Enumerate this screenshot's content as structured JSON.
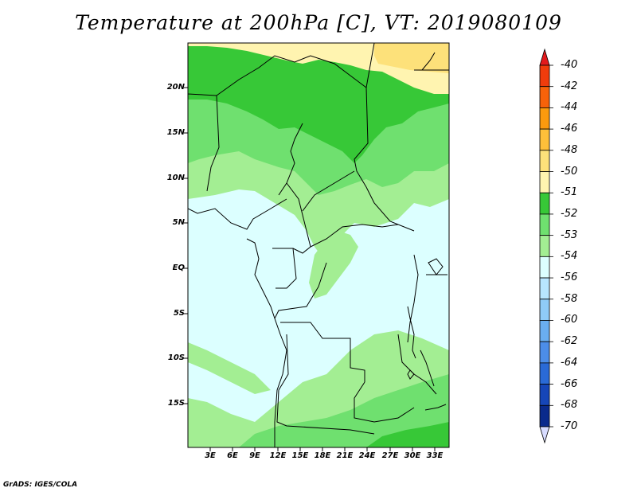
{
  "title": "Temperature at 200hPa [C], VT: 2019080109",
  "credit": "GrADS: IGES/COLA",
  "lat_labels": [
    "20N",
    "15N",
    "10N",
    "5N",
    "EQ",
    "5S",
    "10S",
    "15S"
  ],
  "lon_labels": [
    "3E",
    "6E",
    "9E",
    "12E",
    "15E",
    "18E",
    "21E",
    "24E",
    "27E",
    "30E",
    "33E"
  ],
  "colorbar": {
    "labels": [
      "-40",
      "-42",
      "-44",
      "-46",
      "-48",
      "-50",
      "-51",
      "-52",
      "-53",
      "-54",
      "-56",
      "-58",
      "-60",
      "-62",
      "-64",
      "-66",
      "-68",
      "-70"
    ],
    "colors": [
      "#e31a1c",
      "#f03c0c",
      "#f7620a",
      "#fb9a0e",
      "#fdbf3a",
      "#fde17a",
      "#fff4b0",
      "#37c837",
      "#6fe06f",
      "#a3ee93",
      "#dcffff",
      "#b8e6ff",
      "#8fcbf7",
      "#6aaef0",
      "#4c8de8",
      "#2a6ad6",
      "#1646b8",
      "#0a2a8c",
      "#061a5c"
    ]
  }
}
